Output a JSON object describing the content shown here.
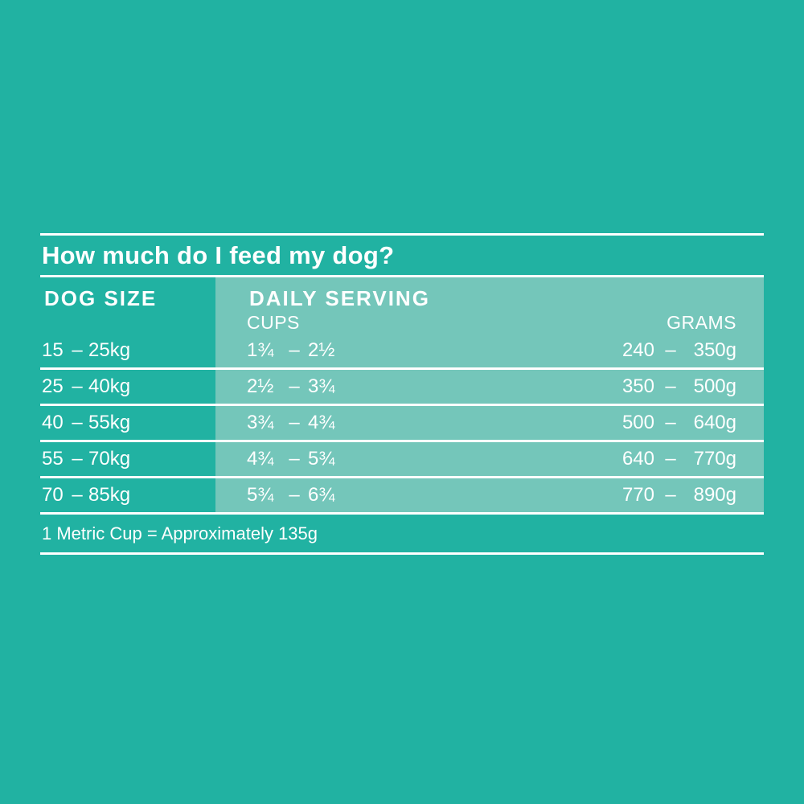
{
  "page": {
    "background_color": "#21b2a2",
    "band_color": "#74c6ba",
    "text_color": "#ffffff"
  },
  "title": "How much do I feed my dog?",
  "table": {
    "dog_size_header": "DOG SIZE",
    "daily_serving_header": "DAILY SERVING",
    "cups_header": "CUPS",
    "grams_header": "GRAMS",
    "dash": "–",
    "rows": [
      {
        "size_min": "15",
        "size_max": "25kg",
        "cups_min": "1¾",
        "cups_max": "2½",
        "grams_min": "240",
        "grams_max": "350g"
      },
      {
        "size_min": "25",
        "size_max": "40kg",
        "cups_min": "2½",
        "cups_max": "3¾",
        "grams_min": "350",
        "grams_max": "500g"
      },
      {
        "size_min": "40",
        "size_max": "55kg",
        "cups_min": "3¾",
        "cups_max": "4¾",
        "grams_min": "500",
        "grams_max": "640g"
      },
      {
        "size_min": "55",
        "size_max": "70kg",
        "cups_min": "4¾",
        "cups_max": "5¾",
        "grams_min": "640",
        "grams_max": "770g"
      },
      {
        "size_min": "70",
        "size_max": "85kg",
        "cups_min": "5¾",
        "cups_max": "6¾",
        "grams_min": "770",
        "grams_max": "890g"
      }
    ]
  },
  "footnote": "1 Metric Cup = Approximately 135g"
}
